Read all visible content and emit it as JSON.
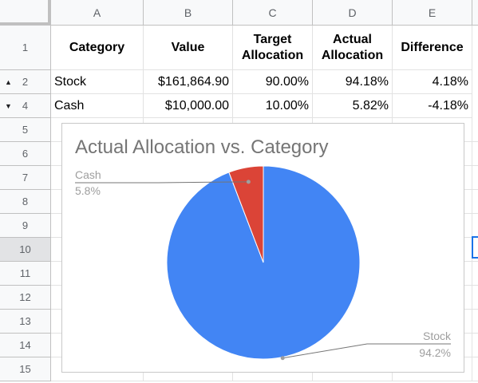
{
  "columns": [
    "A",
    "B",
    "C",
    "D",
    "E"
  ],
  "rows": [
    "1",
    "2",
    "4",
    "5",
    "6",
    "7",
    "8",
    "9",
    "10",
    "11",
    "12",
    "13",
    "14",
    "15"
  ],
  "header": {
    "category": "Category",
    "value": "Value",
    "target_line1": "Target",
    "target_line2": "Allocation",
    "actual_line1": "Actual",
    "actual_line2": "Allocation",
    "difference": "Difference"
  },
  "data_rows": [
    {
      "category": "Stock",
      "value": "$161,864.90",
      "target": "90.00%",
      "actual": "94.18%",
      "difference": "4.18%"
    },
    {
      "category": "Cash",
      "value": "$10,000.00",
      "target": "10.00%",
      "actual": "5.82%",
      "difference": "-4.18%"
    }
  ],
  "chart_data": {
    "type": "pie",
    "title": "Actual Allocation vs. Category",
    "slices": [
      {
        "label": "Stock",
        "value": 94.2,
        "display": "94.2%",
        "color": "#4285f4"
      },
      {
        "label": "Cash",
        "value": 5.8,
        "display": "5.8%",
        "color": "#db4437"
      }
    ]
  }
}
